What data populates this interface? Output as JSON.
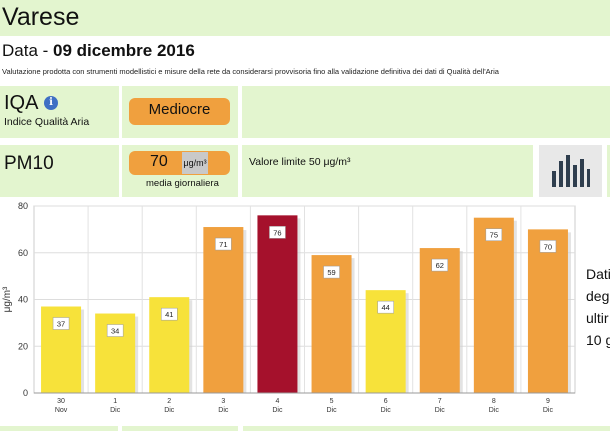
{
  "header": {
    "city": "Varese"
  },
  "date": {
    "prefix": "Data - ",
    "value": "09 dicembre 2016"
  },
  "note": "Valutazione prodotta con strumenti modellistici e misure della rete da considerarsi provvisoria fino alla validazione definitiva dei dati di Qualità dell'Aria",
  "iqa": {
    "label": "IQA",
    "subtitle": "Indice Qualità Aria",
    "info_glyph": "i",
    "rating": "Mediocre",
    "rating_color": "#f0a03e"
  },
  "pm10": {
    "label": "PM10",
    "value": "70",
    "unit": "μg/m³",
    "caption": "media giornaliera",
    "limit_text": "Valore limite 50 μg/m³"
  },
  "side_text": [
    "Dati",
    "degl",
    "ultir",
    "10 g"
  ],
  "colors": {
    "panel": "#e3f5cf",
    "orange": "#f0a03e",
    "yellow": "#f7e23a",
    "dark_red": "#a5112c"
  },
  "chart_data": {
    "type": "bar",
    "categories": [
      "30 Nov",
      "1 Dic",
      "2 Dic",
      "3 Dic",
      "4 Dic",
      "5 Dic",
      "6 Dic",
      "7 Dic",
      "8 Dic",
      "9 Dic"
    ],
    "x_day": [
      "30",
      "1",
      "2",
      "3",
      "4",
      "5",
      "6",
      "7",
      "8",
      "9"
    ],
    "x_month": [
      "Nov",
      "Dic",
      "Dic",
      "Dic",
      "Dic",
      "Dic",
      "Dic",
      "Dic",
      "Dic",
      "Dic"
    ],
    "values": [
      37,
      34,
      41,
      71,
      76,
      59,
      44,
      62,
      75,
      70
    ],
    "bar_colors": [
      "#f7e23a",
      "#f7e23a",
      "#f7e23a",
      "#f0a03e",
      "#a5112c",
      "#f0a03e",
      "#f7e23a",
      "#f0a03e",
      "#f0a03e",
      "#f0a03e"
    ],
    "ylabel": "μg/m³",
    "ylim": [
      0,
      80
    ],
    "yticks": [
      0,
      20,
      40,
      60,
      80
    ],
    "grid": true
  }
}
